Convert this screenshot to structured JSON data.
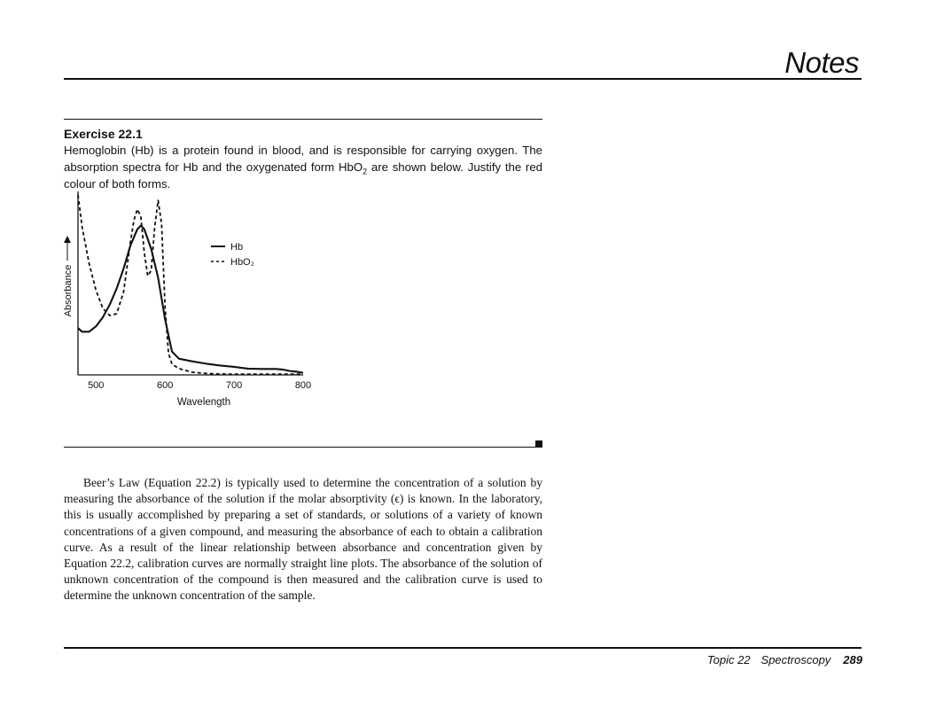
{
  "header": {
    "title": "Notes"
  },
  "exercise": {
    "heading": "Exercise 22.1",
    "text_before": "Hemoglobin (Hb) is a protein found in blood, and is responsible for carrying oxygen. The absorption spectra for Hb and the oxygenated form HbO",
    "sub": "2",
    "text_after": " are shown below. Justify the red colour of both forms."
  },
  "chart_data": {
    "type": "line",
    "title": "",
    "xlabel": "Wavelength",
    "ylabel": "Absorbance",
    "xlim": [
      474,
      800
    ],
    "ylim": [
      0,
      1
    ],
    "x_ticks": [
      500,
      600,
      700,
      800
    ],
    "y_ticks": [],
    "grid": false,
    "legend_position": "right",
    "series": [
      {
        "name": "Hb",
        "style": "solid",
        "x": [
          474,
          480,
          490,
          500,
          510,
          520,
          530,
          540,
          550,
          560,
          565,
          570,
          580,
          590,
          600,
          610,
          620,
          640,
          660,
          680,
          700,
          720,
          740,
          760,
          770,
          780,
          790,
          800
        ],
        "y": [
          0.26,
          0.24,
          0.24,
          0.27,
          0.32,
          0.39,
          0.48,
          0.59,
          0.72,
          0.81,
          0.83,
          0.81,
          0.7,
          0.54,
          0.31,
          0.13,
          0.09,
          0.075,
          0.062,
          0.052,
          0.045,
          0.035,
          0.033,
          0.033,
          0.03,
          0.022,
          0.018,
          0.012
        ]
      },
      {
        "name": "HbO₂",
        "style": "dashed",
        "x": [
          474,
          480,
          490,
          500,
          510,
          520,
          530,
          540,
          550,
          555,
          560,
          565,
          570,
          575,
          580,
          585,
          590,
          595,
          600,
          605,
          610,
          620,
          640,
          660,
          680,
          700,
          720,
          740,
          760,
          780,
          800
        ],
        "y": [
          1.0,
          0.82,
          0.62,
          0.47,
          0.37,
          0.33,
          0.34,
          0.46,
          0.74,
          0.86,
          0.92,
          0.88,
          0.68,
          0.55,
          0.58,
          0.82,
          0.97,
          0.84,
          0.38,
          0.12,
          0.06,
          0.035,
          0.015,
          0.008,
          0.005,
          0.004,
          0.004,
          0.004,
          0.004,
          0.004,
          0.004
        ]
      }
    ]
  },
  "body": {
    "paragraph": "Beer’s Law (Equation 22.2) is typically used to determine the concentration of a solution by measuring the absorbance of the solution if the molar absorptivity (ϵ) is known. In the laboratory, this is usually accomplished by preparing a set of standards, or solutions of a variety of known concentrations of a given compound, and measuring the absorbance of each to obtain a calibration curve. As a result of the linear rela­tionship between absorbance and concentration given by Equation 22.2, calibration curves are normally straight line plots. The absorbance of the solution of unknown concentration of the compound is then measured and the calibration curve is used to determine the unknown concentration of the sample."
  },
  "footer": {
    "topic": "Topic 22",
    "section": "Spectroscopy",
    "page": "289"
  }
}
